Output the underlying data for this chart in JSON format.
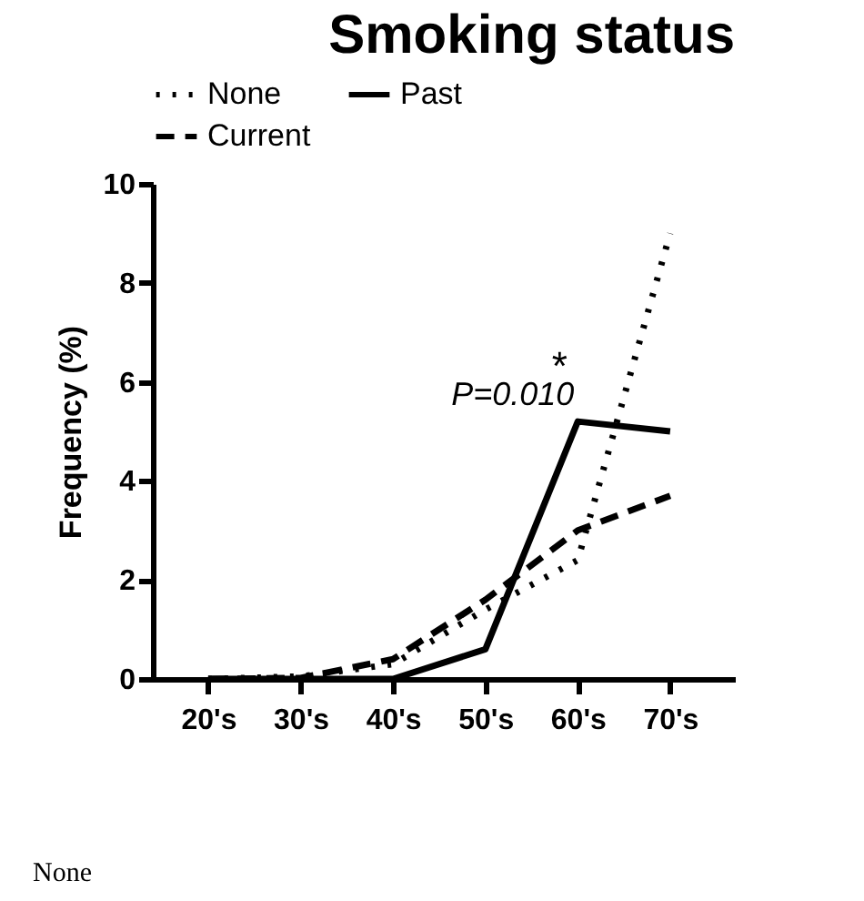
{
  "chart_data": {
    "type": "line",
    "title": "Smoking status",
    "ylabel": "Frequency (%)",
    "categories": [
      "20's",
      "30's",
      "40's",
      "50's",
      "60's",
      "70's"
    ],
    "series": [
      {
        "name": "None",
        "color": "#000000",
        "line_style": "dotted",
        "values": [
          0,
          0.05,
          0.3,
          1.4,
          2.4,
          9.0
        ]
      },
      {
        "name": "Past",
        "color": "#000000",
        "line_style": "solid",
        "values": [
          0,
          0,
          0,
          0.6,
          5.2,
          5.0
        ]
      },
      {
        "name": "Current",
        "color": "#000000",
        "line_style": "dashed",
        "values": [
          0,
          0.02,
          0.4,
          1.6,
          3.0,
          3.7
        ]
      }
    ],
    "ylim": [
      0,
      10
    ],
    "yticks": [
      0,
      2,
      4,
      6,
      8,
      10
    ],
    "grid": false,
    "legend": "top",
    "annotations": [
      {
        "text": "P=0.010",
        "x": "60's",
        "y": 5.2
      },
      {
        "text": "*",
        "x": "60's",
        "y": 5.2
      },
      "None"
    ]
  }
}
